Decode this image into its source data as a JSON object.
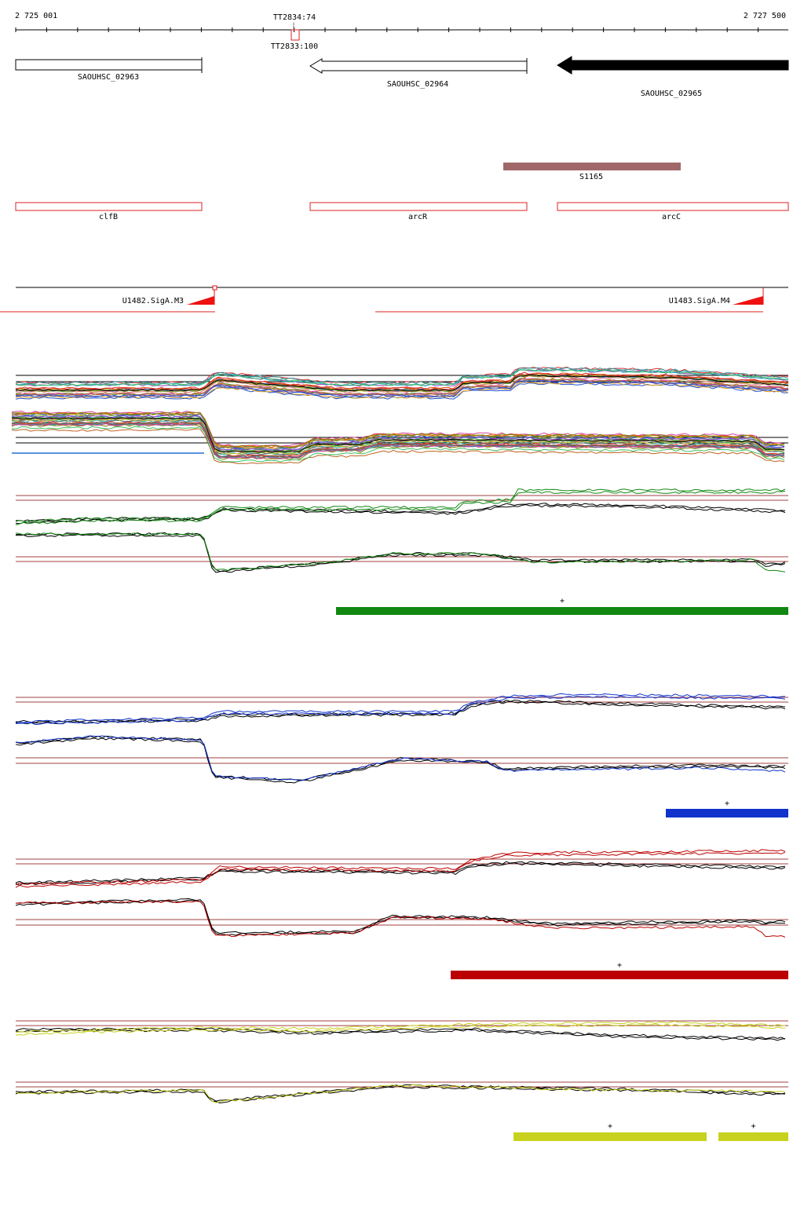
{
  "ruler": {
    "start_label": "2 725 001",
    "end_label": "2 727 500",
    "start_bp": 2725001,
    "end_bp": 2727500,
    "terminator_top_label": "TT2834:74",
    "terminator_bottom_label": "TT2833:100"
  },
  "genes": [
    {
      "label": "SAOUHSC_02963",
      "strand": "+",
      "filled": false
    },
    {
      "label": "SAOUHSC_02964",
      "strand": "-",
      "filled": false
    },
    {
      "label": "SAOUHSC_02965",
      "strand": "-",
      "filled": true
    }
  ],
  "srna": {
    "label": "S1165",
    "color": "#a06868"
  },
  "gene_names": [
    "clfB",
    "arcR",
    "arcC"
  ],
  "promoters": [
    {
      "label": "U1482.SigA.M3"
    },
    {
      "label": "U1483.SigA.M4"
    }
  ],
  "conditions": [
    {
      "key": "green",
      "color": "#118811",
      "segments": [
        {
          "label": "+"
        }
      ]
    },
    {
      "key": "blue",
      "color": "#1133cc",
      "segments": [
        {
          "label": "+"
        }
      ]
    },
    {
      "key": "red",
      "color": "#bb0000",
      "segments": [
        {
          "label": "+"
        }
      ]
    },
    {
      "key": "yellow",
      "color": "#c8d21e",
      "segments": [
        {
          "label": "+"
        },
        {
          "label": "+"
        }
      ]
    }
  ],
  "colors": {
    "feature_outline": "#dd2222",
    "threshold_line": "#a04040",
    "srna_bar": "#a06868",
    "gene_fill": "#000000"
  }
}
